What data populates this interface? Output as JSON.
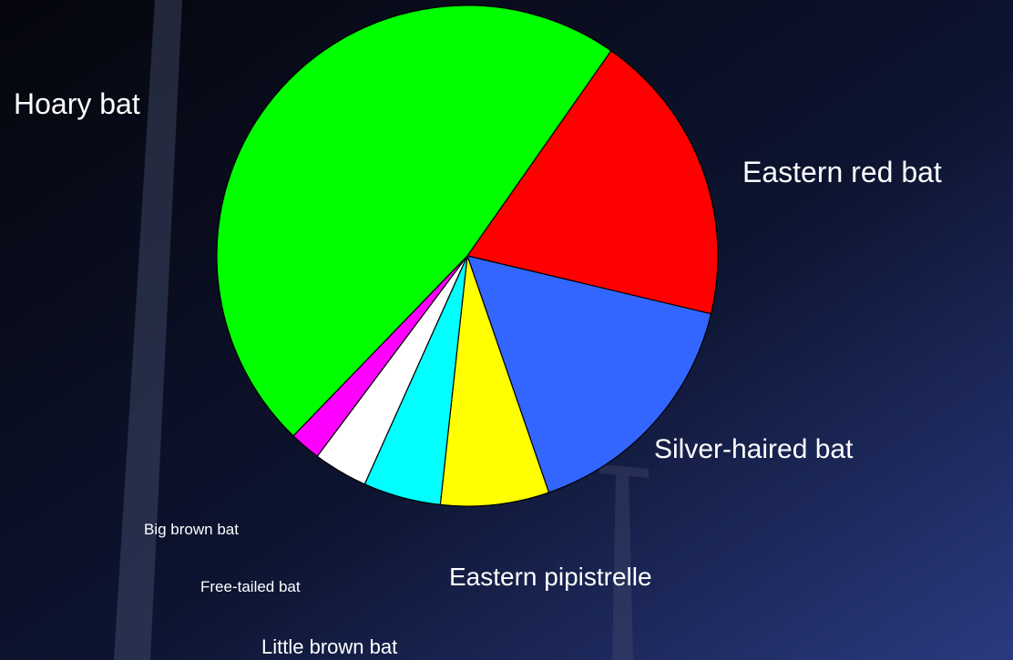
{
  "chart_data": {
    "type": "pie",
    "categories": [
      "Eastern red bat",
      "Silver-haired bat",
      "Eastern pipistrelle",
      "Little brown bat",
      "Free-tailed bat",
      "Big brown bat",
      "Hoary bat"
    ],
    "values": [
      19,
      16,
      7,
      5,
      3.5,
      2,
      47.5
    ],
    "colors": [
      "#ff0000",
      "#3366ff",
      "#ffff00",
      "#00ffff",
      "#ffffff",
      "#ff00ff",
      "#00ff00"
    ]
  }
}
